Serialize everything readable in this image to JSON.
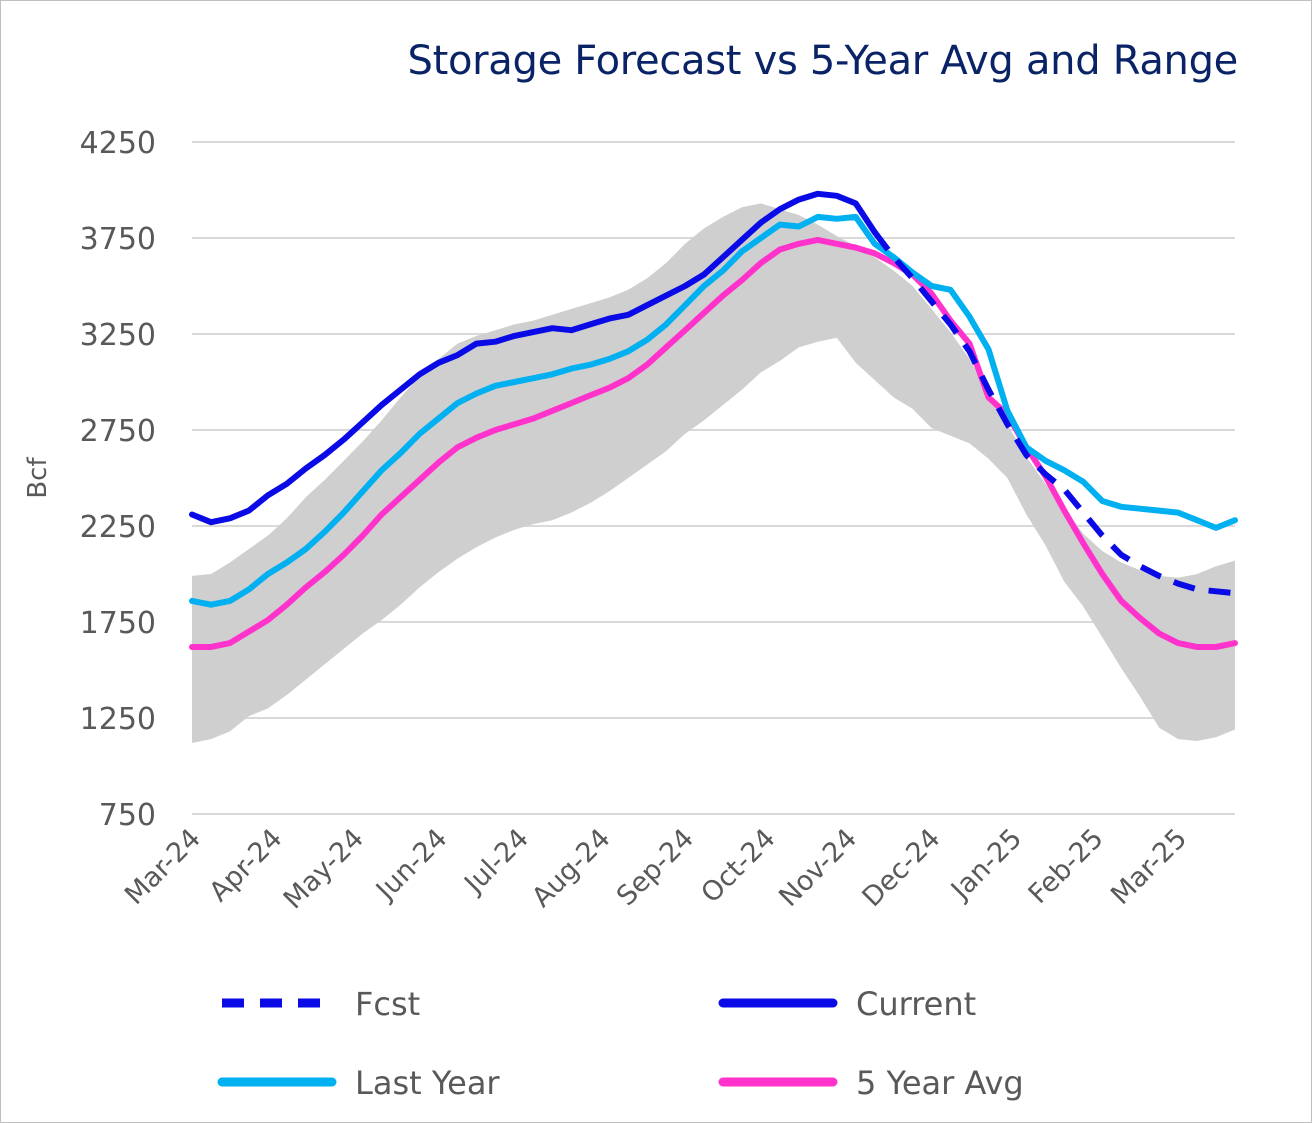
{
  "chart_data": {
    "type": "line",
    "title": "Storage Forecast vs 5-Year Avg and Range",
    "ylabel": "Bcf",
    "xlabel": "",
    "ylim": [
      750,
      4250
    ],
    "yticks": [
      750,
      1250,
      1750,
      2250,
      2750,
      3250,
      3750,
      4250
    ],
    "grid": true,
    "legend_placement": "bottom",
    "xticks": [
      "Mar-24",
      "Apr-24",
      "May-24",
      "Jun-24",
      "Jul-24",
      "Aug-24",
      "Sep-24",
      "Oct-24",
      "Nov-24",
      "Dec-24",
      "Jan-25",
      "Feb-25",
      "Mar-25"
    ],
    "x_range": [
      0,
      55
    ],
    "x_tick_positions": [
      0,
      4.3,
      8.6,
      13,
      17.3,
      21.6,
      26,
      30.3,
      34.6,
      39,
      43.3,
      47.6,
      52
    ],
    "range_band": {
      "name": "5-Year Range",
      "color": "#d0cfd0",
      "x": [
        0,
        1,
        2,
        3,
        4,
        5,
        6,
        7,
        8,
        9,
        10,
        11,
        12,
        13,
        14,
        15,
        16,
        17,
        18,
        19,
        20,
        21,
        22,
        23,
        24,
        25,
        26,
        27,
        28,
        29,
        30,
        31,
        32,
        33,
        34,
        35,
        36,
        37,
        38,
        39,
        40,
        41,
        42,
        43,
        44,
        45,
        46,
        47,
        48,
        49,
        50,
        51,
        52,
        53,
        54,
        55
      ],
      "upper": [
        1990,
        2000,
        2060,
        2130,
        2200,
        2290,
        2400,
        2490,
        2590,
        2690,
        2800,
        2920,
        3030,
        3120,
        3200,
        3240,
        3270,
        3300,
        3320,
        3350,
        3380,
        3410,
        3440,
        3480,
        3540,
        3620,
        3720,
        3800,
        3860,
        3910,
        3930,
        3900,
        3870,
        3820,
        3760,
        3710,
        3650,
        3580,
        3500,
        3380,
        3260,
        3120,
        2950,
        2780,
        2610,
        2470,
        2340,
        2210,
        2120,
        2060,
        2020,
        1990,
        1980,
        2000,
        2040,
        2070
      ],
      "lower": [
        1120,
        1140,
        1180,
        1260,
        1300,
        1370,
        1450,
        1530,
        1610,
        1690,
        1760,
        1840,
        1930,
        2010,
        2080,
        2140,
        2190,
        2230,
        2260,
        2280,
        2320,
        2370,
        2430,
        2500,
        2570,
        2640,
        2730,
        2800,
        2880,
        2960,
        3050,
        3110,
        3180,
        3210,
        3230,
        3100,
        3010,
        2920,
        2860,
        2760,
        2720,
        2680,
        2600,
        2500,
        2310,
        2150,
        1960,
        1830,
        1670,
        1510,
        1360,
        1200,
        1140,
        1130,
        1150,
        1190
      ]
    },
    "series": [
      {
        "name": "Current",
        "color": "#0a0ae6",
        "style": "solid",
        "x": [
          0,
          1,
          2,
          3,
          4,
          5,
          6,
          7,
          8,
          9,
          10,
          11,
          12,
          13,
          14,
          15,
          16,
          17,
          18,
          19,
          20,
          21,
          22,
          23,
          24,
          25,
          26,
          27,
          28,
          29,
          30,
          31,
          32,
          33,
          34,
          35,
          36
        ],
        "values": [
          2310,
          2270,
          2290,
          2330,
          2410,
          2470,
          2550,
          2620,
          2700,
          2790,
          2880,
          2960,
          3040,
          3100,
          3140,
          3200,
          3210,
          3240,
          3260,
          3280,
          3270,
          3300,
          3330,
          3350,
          3400,
          3450,
          3500,
          3560,
          3650,
          3740,
          3830,
          3900,
          3950,
          3980,
          3970,
          3930,
          3780
        ]
      },
      {
        "name": "Fcst",
        "color": "#0a0ae6",
        "style": "dashed",
        "x": [
          36,
          37,
          38,
          39,
          40,
          41,
          42,
          43,
          44,
          45,
          46,
          47,
          48,
          49,
          50,
          51,
          52,
          53,
          54,
          55
        ],
        "values": [
          3780,
          3650,
          3540,
          3420,
          3300,
          3160,
          2960,
          2780,
          2620,
          2520,
          2440,
          2320,
          2200,
          2100,
          2040,
          1990,
          1950,
          1920,
          1910,
          1900
        ]
      },
      {
        "name": "Last Year",
        "color": "#00b0f0",
        "style": "solid",
        "x": [
          0,
          1,
          2,
          3,
          4,
          5,
          6,
          7,
          8,
          9,
          10,
          11,
          12,
          13,
          14,
          15,
          16,
          17,
          18,
          19,
          20,
          21,
          22,
          23,
          24,
          25,
          26,
          27,
          28,
          29,
          30,
          31,
          32,
          33,
          34,
          35,
          36,
          37,
          38,
          39,
          40,
          41,
          42,
          43,
          44,
          45,
          46,
          47,
          48,
          49,
          50,
          51,
          52,
          53,
          54,
          55
        ],
        "values": [
          1860,
          1840,
          1860,
          1920,
          2000,
          2060,
          2130,
          2220,
          2320,
          2430,
          2540,
          2630,
          2730,
          2810,
          2890,
          2940,
          2980,
          3000,
          3020,
          3040,
          3070,
          3090,
          3120,
          3160,
          3220,
          3300,
          3400,
          3500,
          3580,
          3680,
          3750,
          3820,
          3810,
          3860,
          3850,
          3860,
          3720,
          3650,
          3570,
          3500,
          3480,
          3340,
          3170,
          2850,
          2660,
          2590,
          2540,
          2480,
          2380,
          2350,
          2340,
          2330,
          2320,
          2280,
          2240,
          2280
        ]
      },
      {
        "name": "5 Year Avg",
        "color": "#ff33cc",
        "style": "solid",
        "x": [
          0,
          1,
          2,
          3,
          4,
          5,
          6,
          7,
          8,
          9,
          10,
          11,
          12,
          13,
          14,
          15,
          16,
          17,
          18,
          19,
          20,
          21,
          22,
          23,
          24,
          25,
          26,
          27,
          28,
          29,
          30,
          31,
          32,
          33,
          34,
          35,
          36,
          37,
          38,
          39,
          40,
          41,
          42,
          43,
          44,
          45,
          46,
          47,
          48,
          49,
          50,
          51,
          52,
          53,
          54,
          55
        ],
        "values": [
          1620,
          1620,
          1640,
          1700,
          1760,
          1840,
          1930,
          2010,
          2100,
          2200,
          2310,
          2400,
          2490,
          2580,
          2660,
          2710,
          2750,
          2780,
          2810,
          2850,
          2890,
          2930,
          2970,
          3020,
          3090,
          3180,
          3270,
          3360,
          3450,
          3530,
          3620,
          3690,
          3720,
          3740,
          3720,
          3700,
          3670,
          3620,
          3560,
          3460,
          3320,
          3200,
          2920,
          2830,
          2660,
          2510,
          2330,
          2160,
          2000,
          1860,
          1770,
          1690,
          1640,
          1620,
          1620,
          1640
        ]
      }
    ],
    "legend": [
      {
        "name": "Fcst",
        "style": "dashed",
        "color": "#0a0ae6"
      },
      {
        "name": "Current",
        "style": "solid",
        "color": "#0a0ae6"
      },
      {
        "name": "Last Year",
        "style": "solid",
        "color": "#00b0f0"
      },
      {
        "name": "5 Year Avg",
        "style": "solid",
        "color": "#ff33cc"
      }
    ]
  }
}
